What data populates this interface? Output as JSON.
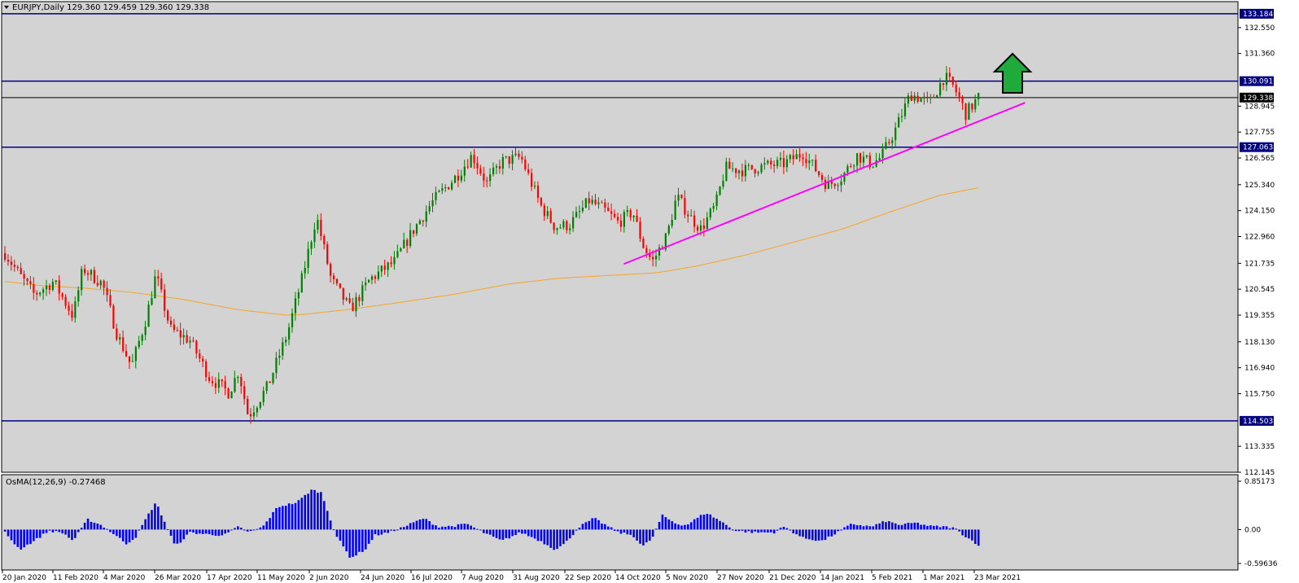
{
  "chart_data": [
    {
      "type": "candlestick",
      "title": "EURJPY,Daily",
      "ohlc_values": "129.360 129.459 129.360 129.338",
      "ylim": [
        112.145,
        133.74
      ],
      "y_ticks": [
        "132.550",
        "131.360",
        "128.945",
        "127.755",
        "126.565",
        "125.340",
        "124.150",
        "122.960",
        "121.735",
        "120.545",
        "119.355",
        "118.130",
        "116.940",
        "115.750",
        "113.335",
        "112.145"
      ],
      "x_ticks": [
        "20 Jan 2020",
        "11 Feb 2020",
        "4 Mar 2020",
        "26 Mar 2020",
        "17 Apr 2020",
        "11 May 2020",
        "2 Jun 2020",
        "24 Jun 2020",
        "16 Jul 2020",
        "7 Aug 2020",
        "31 Aug 2020",
        "22 Sep 2020",
        "14 Oct 2020",
        "5 Nov 2020",
        "27 Nov 2020",
        "21 Dec 2020",
        "14 Jan 2021",
        "5 Feb 2021",
        "1 Mar 2021",
        "23 Mar 2021"
      ],
      "horizontal_levels": [
        {
          "value": 133.184,
          "label": "133.184",
          "color": "#000080"
        },
        {
          "value": 130.091,
          "label": "130.091",
          "color": "#000080"
        },
        {
          "value": 129.338,
          "label": "129.338",
          "color": "#000000"
        },
        {
          "value": 127.063,
          "label": "127.063",
          "color": "#000080"
        },
        {
          "value": 114.503,
          "label": "114.503",
          "color": "#000080"
        }
      ],
      "trendline": {
        "from": [
          "20 Oct 2020",
          121.7
        ],
        "to": [
          "25 Mar 2021",
          129.1
        ],
        "color": "#ff00ff"
      },
      "moving_average_color": "#f5a623",
      "moving_average": [
        {
          "t": 0,
          "v": 120.9
        },
        {
          "t": 0.04,
          "v": 120.7
        },
        {
          "t": 0.08,
          "v": 120.6
        },
        {
          "t": 0.13,
          "v": 120.4
        },
        {
          "t": 0.18,
          "v": 120.1
        },
        {
          "t": 0.24,
          "v": 119.6
        },
        {
          "t": 0.29,
          "v": 119.35
        },
        {
          "t": 0.31,
          "v": 119.4
        },
        {
          "t": 0.35,
          "v": 119.6
        },
        {
          "t": 0.4,
          "v": 119.9
        },
        {
          "t": 0.46,
          "v": 120.3
        },
        {
          "t": 0.52,
          "v": 120.8
        },
        {
          "t": 0.57,
          "v": 121.05
        },
        {
          "t": 0.63,
          "v": 121.2
        },
        {
          "t": 0.67,
          "v": 121.3
        },
        {
          "t": 0.71,
          "v": 121.6
        },
        {
          "t": 0.76,
          "v": 122.1
        },
        {
          "t": 0.81,
          "v": 122.7
        },
        {
          "t": 0.86,
          "v": 123.3
        },
        {
          "t": 0.91,
          "v": 124.1
        },
        {
          "t": 0.96,
          "v": 124.85
        },
        {
          "t": 1.0,
          "v": 125.2
        }
      ],
      "anchors": [
        {
          "t": 0,
          "v": 122.2
        },
        {
          "t": 0.015,
          "v": 121.2
        },
        {
          "t": 0.03,
          "v": 120.3
        },
        {
          "t": 0.05,
          "v": 120.9
        },
        {
          "t": 0.07,
          "v": 119.3
        },
        {
          "t": 0.08,
          "v": 121.5
        },
        {
          "t": 0.1,
          "v": 120.8
        },
        {
          "t": 0.115,
          "v": 118.5
        },
        {
          "t": 0.13,
          "v": 117.0
        },
        {
          "t": 0.145,
          "v": 119.2
        },
        {
          "t": 0.155,
          "v": 121.2
        },
        {
          "t": 0.17,
          "v": 118.7
        },
        {
          "t": 0.19,
          "v": 118.2
        },
        {
          "t": 0.21,
          "v": 116.5
        },
        {
          "t": 0.23,
          "v": 115.8
        },
        {
          "t": 0.24,
          "v": 116.8
        },
        {
          "t": 0.25,
          "v": 114.7
        },
        {
          "t": 0.27,
          "v": 116.1
        },
        {
          "t": 0.29,
          "v": 118.5
        },
        {
          "t": 0.305,
          "v": 121.0
        },
        {
          "t": 0.32,
          "v": 123.9
        },
        {
          "t": 0.335,
          "v": 121.0
        },
        {
          "t": 0.355,
          "v": 119.6
        },
        {
          "t": 0.375,
          "v": 121.0
        },
        {
          "t": 0.4,
          "v": 121.8
        },
        {
          "t": 0.42,
          "v": 123.3
        },
        {
          "t": 0.44,
          "v": 124.6
        },
        {
          "t": 0.465,
          "v": 125.8
        },
        {
          "t": 0.48,
          "v": 126.7
        },
        {
          "t": 0.495,
          "v": 125.4
        },
        {
          "t": 0.51,
          "v": 126.4
        },
        {
          "t": 0.53,
          "v": 126.6
        },
        {
          "t": 0.55,
          "v": 124.4
        },
        {
          "t": 0.565,
          "v": 123.4
        },
        {
          "t": 0.58,
          "v": 123.5
        },
        {
          "t": 0.6,
          "v": 124.6
        },
        {
          "t": 0.615,
          "v": 124.2
        },
        {
          "t": 0.63,
          "v": 123.6
        },
        {
          "t": 0.645,
          "v": 124.1
        },
        {
          "t": 0.655,
          "v": 122.6
        },
        {
          "t": 0.665,
          "v": 121.8
        },
        {
          "t": 0.68,
          "v": 123.0
        },
        {
          "t": 0.69,
          "v": 124.8
        },
        {
          "t": 0.705,
          "v": 123.8
        },
        {
          "t": 0.715,
          "v": 123.3
        },
        {
          "t": 0.73,
          "v": 124.4
        },
        {
          "t": 0.74,
          "v": 126.1
        },
        {
          "t": 0.76,
          "v": 126.0
        },
        {
          "t": 0.78,
          "v": 126.2
        },
        {
          "t": 0.8,
          "v": 126.3
        },
        {
          "t": 0.82,
          "v": 126.8
        },
        {
          "t": 0.83,
          "v": 126.2
        },
        {
          "t": 0.845,
          "v": 125.3
        },
        {
          "t": 0.86,
          "v": 125.7
        },
        {
          "t": 0.875,
          "v": 126.7
        },
        {
          "t": 0.89,
          "v": 126.3
        },
        {
          "t": 0.9,
          "v": 126.6
        },
        {
          "t": 0.915,
          "v": 127.9
        },
        {
          "t": 0.93,
          "v": 129.5
        },
        {
          "t": 0.95,
          "v": 129.1
        },
        {
          "t": 0.965,
          "v": 130.3
        },
        {
          "t": 0.975,
          "v": 129.8
        },
        {
          "t": 0.987,
          "v": 128.6
        },
        {
          "t": 1.0,
          "v": 129.34
        }
      ]
    },
    {
      "type": "histogram",
      "title": "OsMA(12,26,9) -0.27468",
      "ylim": [
        -0.59636,
        0.85173
      ],
      "y_ticks": [
        "0.85173",
        "0.00",
        "-0.59636"
      ],
      "color": "#0000ff",
      "anchors": [
        {
          "t": 0,
          "v": -0.05
        },
        {
          "t": 0.015,
          "v": -0.35
        },
        {
          "t": 0.03,
          "v": -0.2
        },
        {
          "t": 0.045,
          "v": -0.02
        },
        {
          "t": 0.06,
          "v": -0.06
        },
        {
          "t": 0.07,
          "v": -0.2
        },
        {
          "t": 0.085,
          "v": 0.18
        },
        {
          "t": 0.1,
          "v": 0.07
        },
        {
          "t": 0.115,
          "v": -0.12
        },
        {
          "t": 0.125,
          "v": -0.25
        },
        {
          "t": 0.135,
          "v": -0.12
        },
        {
          "t": 0.145,
          "v": 0.2
        },
        {
          "t": 0.155,
          "v": 0.48
        },
        {
          "t": 0.165,
          "v": 0.1
        },
        {
          "t": 0.175,
          "v": -0.3
        },
        {
          "t": 0.19,
          "v": -0.05
        },
        {
          "t": 0.205,
          "v": -0.08
        },
        {
          "t": 0.225,
          "v": -0.1
        },
        {
          "t": 0.24,
          "v": 0.05
        },
        {
          "t": 0.25,
          "v": -0.05
        },
        {
          "t": 0.265,
          "v": 0.05
        },
        {
          "t": 0.28,
          "v": 0.4
        },
        {
          "t": 0.3,
          "v": 0.48
        },
        {
          "t": 0.315,
          "v": 0.7
        },
        {
          "t": 0.325,
          "v": 0.65
        },
        {
          "t": 0.34,
          "v": -0.1
        },
        {
          "t": 0.355,
          "v": -0.5
        },
        {
          "t": 0.37,
          "v": -0.35
        },
        {
          "t": 0.38,
          "v": -0.1
        },
        {
          "t": 0.395,
          "v": -0.05
        },
        {
          "t": 0.41,
          "v": 0.05
        },
        {
          "t": 0.43,
          "v": 0.2
        },
        {
          "t": 0.445,
          "v": 0.05
        },
        {
          "t": 0.46,
          "v": 0.06
        },
        {
          "t": 0.475,
          "v": 0.1
        },
        {
          "t": 0.49,
          "v": -0.04
        },
        {
          "t": 0.51,
          "v": -0.2
        },
        {
          "t": 0.53,
          "v": -0.05
        },
        {
          "t": 0.55,
          "v": -0.2
        },
        {
          "t": 0.565,
          "v": -0.35
        },
        {
          "t": 0.575,
          "v": -0.25
        },
        {
          "t": 0.59,
          "v": 0.05
        },
        {
          "t": 0.605,
          "v": 0.2
        },
        {
          "t": 0.615,
          "v": 0.1
        },
        {
          "t": 0.63,
          "v": -0.05
        },
        {
          "t": 0.645,
          "v": -0.1
        },
        {
          "t": 0.655,
          "v": -0.3
        },
        {
          "t": 0.665,
          "v": -0.15
        },
        {
          "t": 0.675,
          "v": 0.25
        },
        {
          "t": 0.69,
          "v": 0.1
        },
        {
          "t": 0.7,
          "v": 0.08
        },
        {
          "t": 0.72,
          "v": 0.3
        },
        {
          "t": 0.735,
          "v": 0.15
        },
        {
          "t": 0.75,
          "v": -0.02
        },
        {
          "t": 0.77,
          "v": -0.05
        },
        {
          "t": 0.79,
          "v": -0.05
        },
        {
          "t": 0.8,
          "v": 0.05
        },
        {
          "t": 0.81,
          "v": -0.05
        },
        {
          "t": 0.82,
          "v": -0.15
        },
        {
          "t": 0.84,
          "v": -0.2
        },
        {
          "t": 0.855,
          "v": -0.05
        },
        {
          "t": 0.87,
          "v": 0.1
        },
        {
          "t": 0.89,
          "v": 0.05
        },
        {
          "t": 0.905,
          "v": 0.15
        },
        {
          "t": 0.92,
          "v": 0.08
        },
        {
          "t": 0.935,
          "v": 0.12
        },
        {
          "t": 0.95,
          "v": 0.06
        },
        {
          "t": 0.965,
          "v": 0.05
        },
        {
          "t": 0.975,
          "v": 0.03
        },
        {
          "t": 0.985,
          "v": -0.1
        },
        {
          "t": 1.0,
          "v": -0.27
        }
      ]
    }
  ]
}
